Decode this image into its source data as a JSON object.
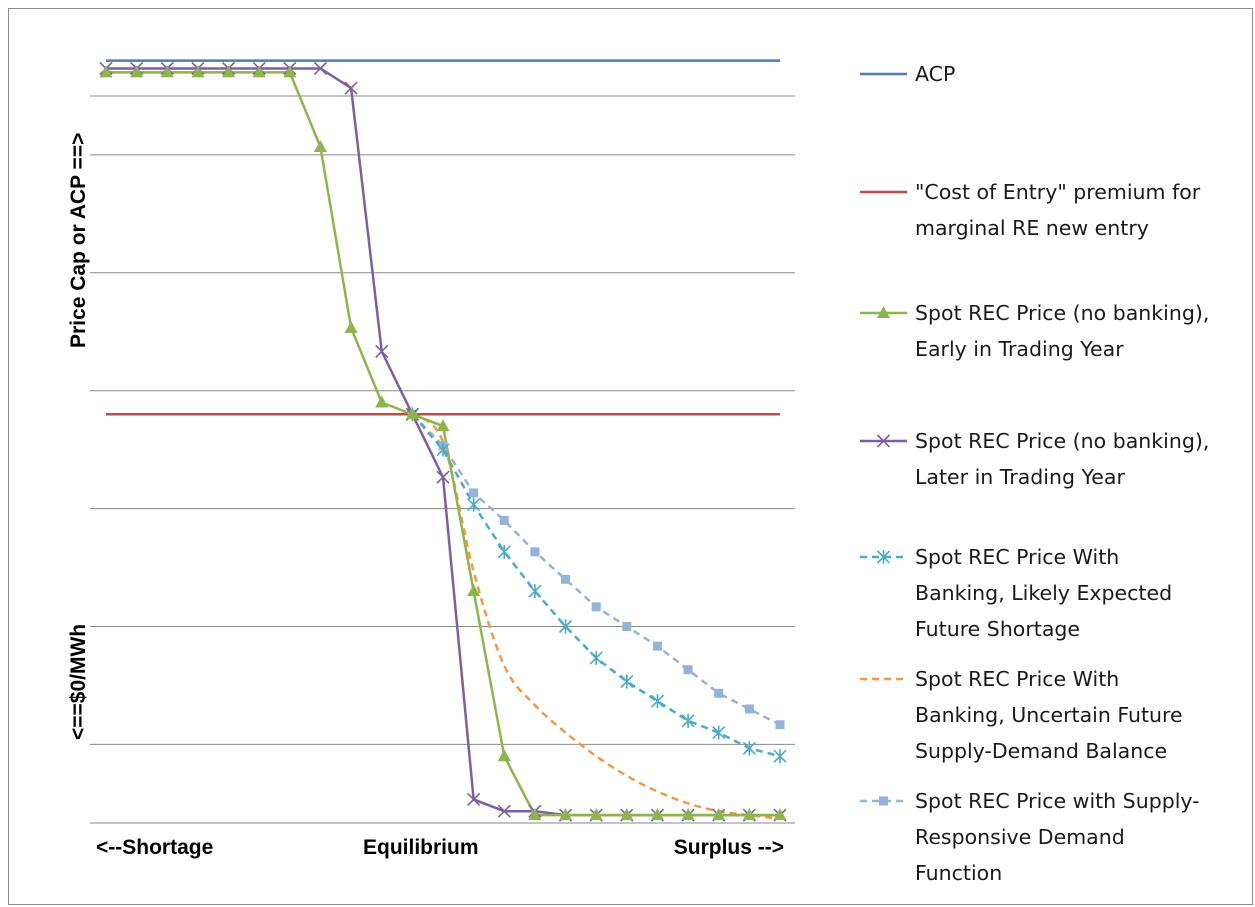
{
  "chart_data": {
    "type": "line",
    "categories": [
      "<--Shortage",
      "Equilibrium",
      "Surplus -->"
    ],
    "y_labels": {
      "top": "Price Cap or ACP ==>",
      "bottom": "<==$0/MWh"
    },
    "ylim": [
      0,
      10
    ],
    "gridlines": [
      1,
      2.5,
      4,
      5.5,
      7,
      8.5,
      9.25
    ],
    "x": [
      0,
      1,
      2,
      3,
      4,
      5,
      6,
      7,
      8,
      9,
      10,
      11,
      12,
      13,
      14,
      15,
      16,
      17,
      18,
      19,
      20,
      21,
      22
    ],
    "series": [
      {
        "name": "ACP",
        "color": "#4a7ebb",
        "dash": "solid",
        "marker": "none",
        "values": [
          9.7,
          9.7,
          9.7,
          9.7,
          9.7,
          9.7,
          9.7,
          9.7,
          9.7,
          9.7,
          9.7,
          9.7,
          9.7,
          9.7,
          9.7,
          9.7,
          9.7,
          9.7,
          9.7,
          9.7,
          9.7,
          9.7,
          9.7
        ]
      },
      {
        "name": "\"Cost of Entry\" premium for marginal RE new entry",
        "color": "#be4b48",
        "dash": "solid",
        "marker": "none",
        "values": [
          5.2,
          5.2,
          5.2,
          5.2,
          5.2,
          5.2,
          5.2,
          5.2,
          5.2,
          5.2,
          5.2,
          5.2,
          5.2,
          5.2,
          5.2,
          5.2,
          5.2,
          5.2,
          5.2,
          5.2,
          5.2,
          5.2,
          5.2
        ]
      },
      {
        "name": "Spot REC Price (no banking), Early in Trading Year",
        "color": "#8cb54a",
        "dash": "solid",
        "marker": "triangle",
        "values": [
          9.55,
          9.55,
          9.55,
          9.55,
          9.55,
          9.55,
          9.55,
          8.6,
          6.3,
          5.35,
          5.2,
          5.05,
          2.95,
          0.85,
          0.1,
          0.1,
          0.1,
          0.1,
          0.1,
          0.1,
          0.1,
          0.1,
          0.1
        ]
      },
      {
        "name": "Spot REC Price (no banking), Later in Trading Year",
        "color": "#7e5ea3",
        "dash": "solid",
        "marker": "x",
        "values": [
          9.6,
          9.6,
          9.6,
          9.6,
          9.6,
          9.6,
          9.6,
          9.6,
          9.35,
          6.0,
          5.2,
          4.4,
          0.3,
          0.15,
          0.15,
          0.1,
          0.1,
          0.1,
          0.1,
          0.1,
          0.1,
          0.1,
          0.1
        ]
      },
      {
        "name": "Spot REC Price With Banking, Likely Expected Future Shortage",
        "color": "#4aacc6",
        "dash": "dashed",
        "marker": "asterisk",
        "values": [
          null,
          null,
          null,
          null,
          null,
          null,
          null,
          null,
          null,
          null,
          5.2,
          4.75,
          4.05,
          3.45,
          2.95,
          2.5,
          2.1,
          1.8,
          1.55,
          1.3,
          1.15,
          0.95,
          0.85
        ]
      },
      {
        "name": "Spot REC Price With Banking, Uncertain Future Supply-Demand Balance",
        "color": "#f79646",
        "dash": "dashed",
        "marker": "none",
        "values": [
          null,
          null,
          null,
          null,
          null,
          null,
          null,
          null,
          null,
          null,
          5.2,
          4.85,
          3.2,
          2.0,
          1.5,
          1.15,
          0.85,
          0.6,
          0.4,
          0.25,
          0.15,
          0.1,
          0.05
        ]
      },
      {
        "name": "Spot REC Price with Supply-Responsive Demand Function",
        "color": "#95b3d7",
        "dash": "dashed",
        "marker": "square",
        "values": [
          null,
          null,
          null,
          null,
          null,
          null,
          null,
          null,
          null,
          null,
          5.2,
          4.8,
          4.2,
          3.85,
          3.45,
          3.1,
          2.75,
          2.5,
          2.25,
          1.95,
          1.65,
          1.45,
          1.25
        ]
      }
    ],
    "legend": {
      "position": "right",
      "entries": [
        [
          "ACP"
        ],
        [
          "\"Cost of Entry\" premium for",
          "marginal RE new entry"
        ],
        [
          "Spot REC Price (no banking),",
          "Early in Trading Year"
        ],
        [
          "Spot REC Price (no banking),",
          "Later in Trading Year"
        ],
        [
          "Spot REC Price With",
          "Banking, Likely Expected",
          "Future Shortage"
        ],
        [
          "Spot REC Price With",
          "Banking, Uncertain Future",
          "Supply-Demand Balance"
        ],
        [
          "Spot REC Price with Supply-",
          "Responsive Demand",
          "Function"
        ]
      ]
    },
    "grid": true
  }
}
